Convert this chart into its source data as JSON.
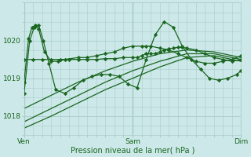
{
  "background_color": "#cce8e8",
  "grid_color": "#aacccc",
  "line_color": "#1a6620",
  "marker_color": "#1a6620",
  "xlabel": "Pression niveau de la mer( hPa )",
  "xtick_labels": [
    "Ven",
    "Sam",
    "Dim"
  ],
  "ylim": [
    1017.5,
    1021.0
  ],
  "yticks": [
    1018,
    1019,
    1020
  ],
  "figsize": [
    3.2,
    2.0
  ],
  "dpi": 100,
  "series_with_markers": [
    {
      "x": [
        0,
        4,
        7,
        10,
        13,
        18,
        24,
        30,
        36,
        48,
        56,
        64,
        72,
        80,
        88,
        96,
        104,
        108,
        112,
        120,
        128,
        136,
        144,
        152,
        160,
        168,
        176,
        184,
        192
      ],
      "y": [
        1018.9,
        1020.05,
        1020.35,
        1020.4,
        1020.3,
        1019.7,
        1019.45,
        1019.45,
        1019.5,
        1019.55,
        1019.55,
        1019.6,
        1019.65,
        1019.7,
        1019.8,
        1019.85,
        1019.85,
        1019.85,
        1019.85,
        1019.8,
        1019.75,
        1019.65,
        1019.55,
        1019.45,
        1019.4,
        1019.4,
        1019.45,
        1019.5,
        1019.6
      ]
    },
    {
      "x": [
        0,
        5,
        9,
        13,
        17,
        22,
        28,
        36,
        44,
        52,
        60,
        68,
        76,
        84,
        92,
        100,
        108,
        116,
        124,
        132,
        140,
        148,
        156,
        164,
        172,
        180,
        188,
        192
      ],
      "y": [
        1018.6,
        1020.0,
        1020.35,
        1020.4,
        1020.0,
        1019.4,
        1018.7,
        1018.6,
        1018.75,
        1018.95,
        1019.05,
        1019.1,
        1019.1,
        1019.05,
        1018.85,
        1018.75,
        1019.5,
        1020.15,
        1020.5,
        1020.35,
        1019.85,
        1019.5,
        1019.25,
        1019.0,
        1018.95,
        1019.0,
        1019.1,
        1019.2
      ]
    },
    {
      "x": [
        0,
        8,
        16,
        24,
        32,
        40,
        48,
        56,
        64,
        72,
        80,
        88,
        96,
        100,
        104,
        108,
        112,
        116,
        120,
        124,
        128,
        132,
        136,
        140,
        144,
        152,
        160,
        168,
        176,
        184,
        192
      ],
      "y": [
        1019.5,
        1019.5,
        1019.5,
        1019.5,
        1019.5,
        1019.5,
        1019.5,
        1019.5,
        1019.5,
        1019.52,
        1019.52,
        1019.55,
        1019.55,
        1019.55,
        1019.6,
        1019.65,
        1019.65,
        1019.65,
        1019.7,
        1019.75,
        1019.78,
        1019.8,
        1019.82,
        1019.82,
        1019.8,
        1019.75,
        1019.65,
        1019.55,
        1019.5,
        1019.45,
        1019.5
      ]
    }
  ],
  "series_smooth": [
    {
      "x": [
        0,
        24,
        48,
        72,
        96,
        120,
        144,
        168,
        192
      ],
      "y": [
        1018.2,
        1018.55,
        1018.9,
        1019.2,
        1019.45,
        1019.65,
        1019.75,
        1019.7,
        1019.55
      ]
    },
    {
      "x": [
        0,
        24,
        48,
        72,
        96,
        120,
        144,
        168,
        192
      ],
      "y": [
        1017.85,
        1018.2,
        1018.55,
        1018.9,
        1019.2,
        1019.45,
        1019.65,
        1019.65,
        1019.5
      ]
    },
    {
      "x": [
        0,
        24,
        48,
        72,
        96,
        120,
        144,
        168,
        192
      ],
      "y": [
        1017.68,
        1018.0,
        1018.35,
        1018.7,
        1019.0,
        1019.3,
        1019.55,
        1019.6,
        1019.45
      ]
    }
  ],
  "xtick_x": [
    0,
    96,
    192
  ]
}
